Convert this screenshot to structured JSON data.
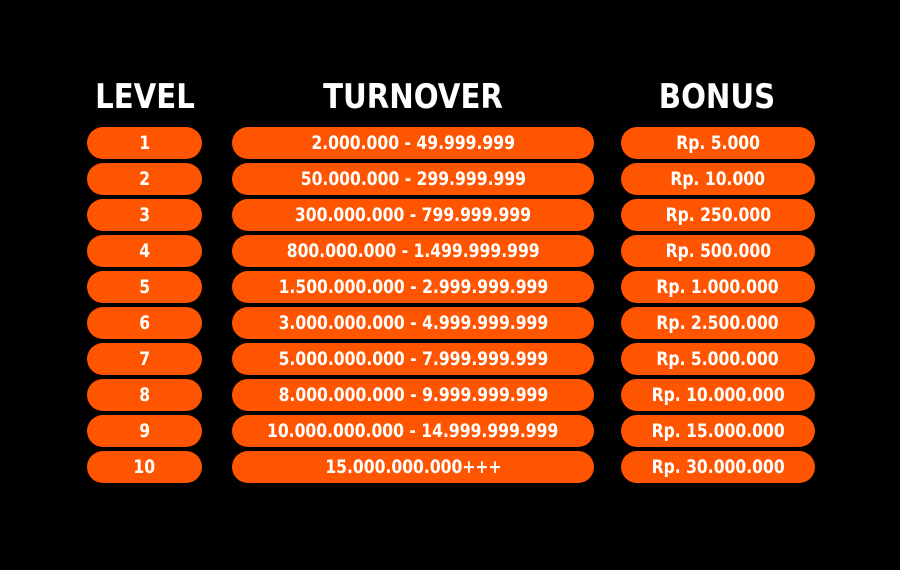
{
  "colors": {
    "background": "#000000",
    "pill": "#ff5500",
    "text": "#ffffff"
  },
  "headers": {
    "level": "LEVEL",
    "turnover": "TURNOVER",
    "bonus": "BONUS"
  },
  "rows": [
    {
      "level": "1",
      "turnover": "2.000.000 - 49.999.999",
      "bonus": "Rp. 5.000"
    },
    {
      "level": "2",
      "turnover": "50.000.000 - 299.999.999",
      "bonus": "Rp. 10.000"
    },
    {
      "level": "3",
      "turnover": "300.000.000 - 799.999.999",
      "bonus": "Rp. 250.000"
    },
    {
      "level": "4",
      "turnover": "800.000.000 - 1.499.999.999",
      "bonus": "Rp. 500.000"
    },
    {
      "level": "5",
      "turnover": "1.500.000.000 - 2.999.999.999",
      "bonus": "Rp. 1.000.000"
    },
    {
      "level": "6",
      "turnover": "3.000.000.000 - 4.999.999.999",
      "bonus": "Rp. 2.500.000"
    },
    {
      "level": "7",
      "turnover": "5.000.000.000 - 7.999.999.999",
      "bonus": "Rp. 5.000.000"
    },
    {
      "level": "8",
      "turnover": "8.000.000.000 - 9.999.999.999",
      "bonus": "Rp. 10.000.000"
    },
    {
      "level": "9",
      "turnover": "10.000.000.000 - 14.999.999.999",
      "bonus": "Rp. 15.000.000"
    },
    {
      "level": "10",
      "turnover": "15.000.000.000+++",
      "bonus": "Rp. 30.000.000"
    }
  ]
}
